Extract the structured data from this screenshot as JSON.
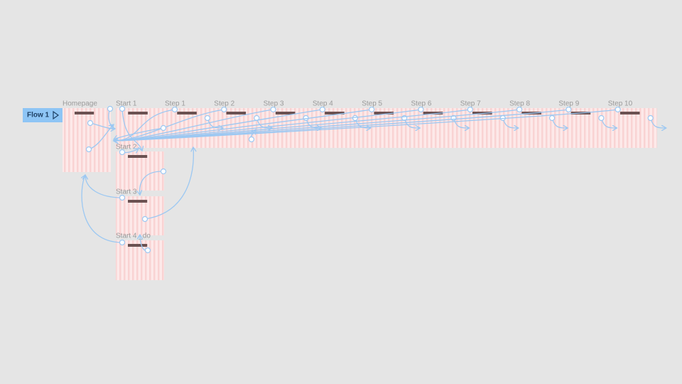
{
  "flow": {
    "label": "Flow 1"
  },
  "frames": [
    {
      "label": "Homepage"
    },
    {
      "label": "Start 1"
    },
    {
      "label": "Step 1"
    },
    {
      "label": "Step 2"
    },
    {
      "label": "Step 3"
    },
    {
      "label": "Step 4"
    },
    {
      "label": "Step 5"
    },
    {
      "label": "Step 6"
    },
    {
      "label": "Step 7"
    },
    {
      "label": "Step 8"
    },
    {
      "label": "Step 9"
    },
    {
      "label": "Step 10"
    },
    {
      "label": "Start 2"
    },
    {
      "label": "Start 3"
    },
    {
      "label": "Start 4 _do"
    }
  ]
}
